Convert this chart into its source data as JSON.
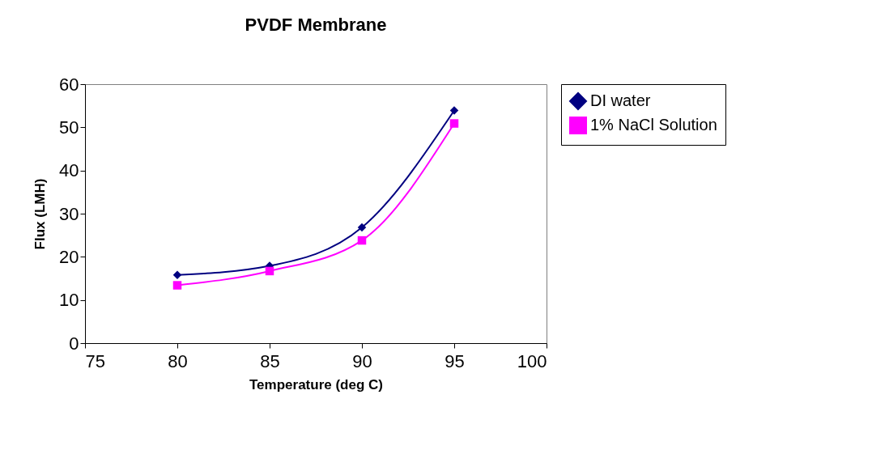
{
  "chart_data": {
    "type": "line",
    "title": "PVDF Membrane",
    "xlabel": "Temperature (deg C)",
    "ylabel": "Flux (LMH)",
    "x": [
      80,
      85,
      90,
      95
    ],
    "series": [
      {
        "name": "DI water",
        "color": "#000080",
        "marker": "diamond",
        "values": [
          15.8,
          17.9,
          26.8,
          53.9
        ]
      },
      {
        "name": "1% NaCl Solution",
        "color": "#ff00ff",
        "marker": "square",
        "values": [
          13.4,
          16.7,
          23.8,
          50.9
        ]
      }
    ],
    "xlim": [
      75,
      100
    ],
    "xticks": [
      75,
      80,
      85,
      90,
      95,
      100
    ],
    "ylim": [
      0,
      60
    ],
    "yticks": [
      0,
      10,
      20,
      30,
      40,
      50,
      60
    ],
    "grid": false,
    "legend": "right",
    "line_style": "solid"
  }
}
